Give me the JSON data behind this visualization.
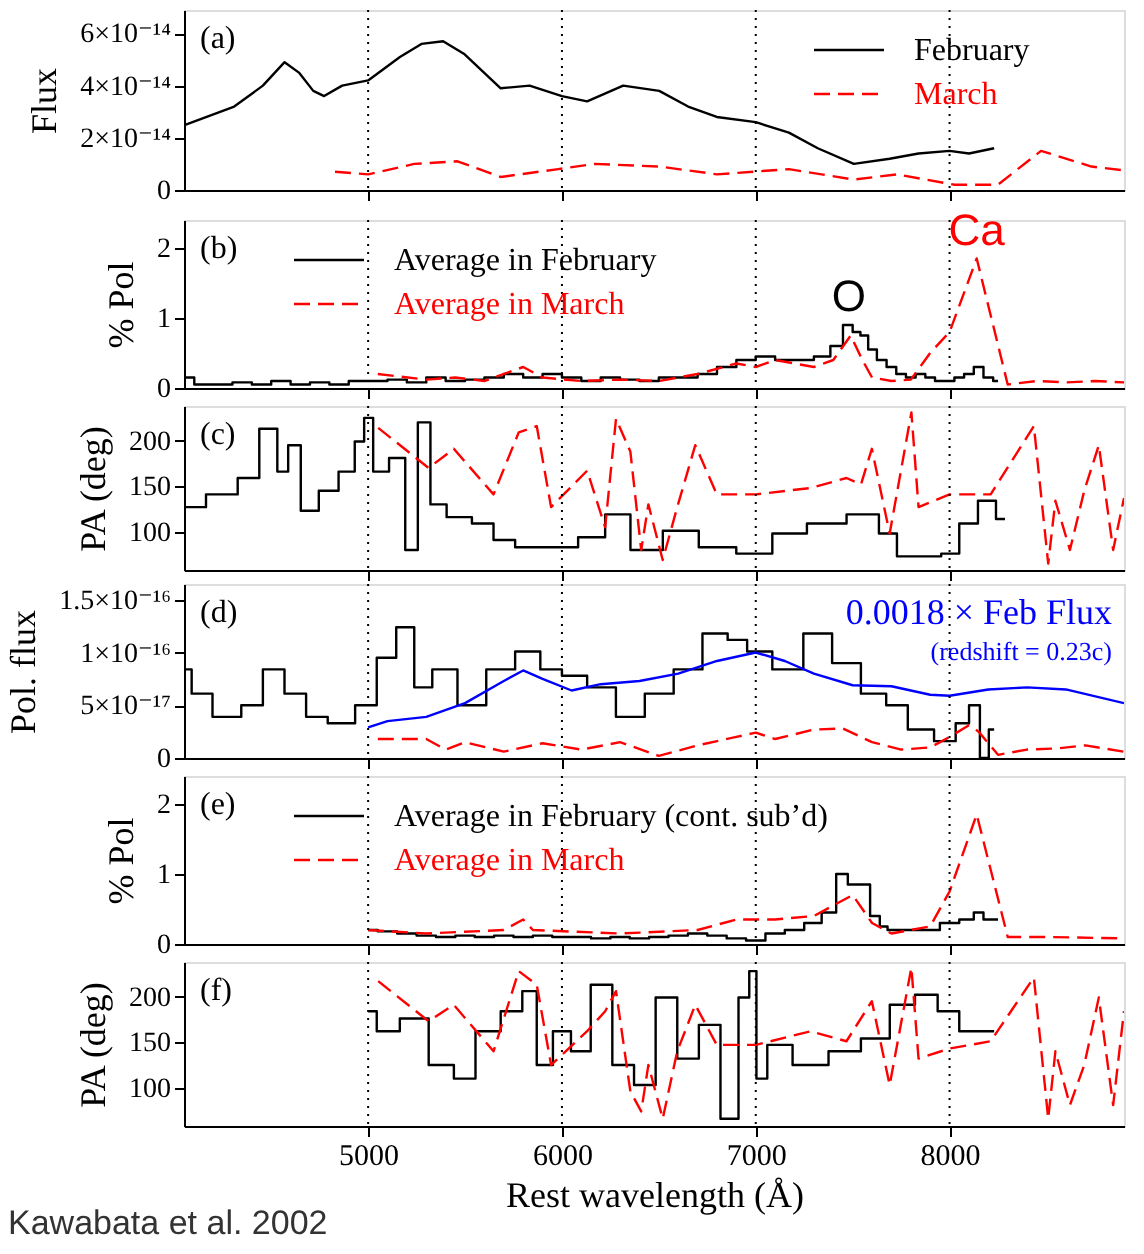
{
  "chart_data": [
    {
      "type": "line",
      "ylabel": "Flux",
      "xlim": [
        4050,
        8900
      ],
      "xticks": [
        5000,
        6000,
        7000,
        8000
      ],
      "ylim": [
        0,
        6.9e-14
      ],
      "yticks": [
        0,
        {
          "value": 2e-14,
          "label": "2×10⁻¹⁴"
        },
        {
          "value": 4e-14,
          "label": "4×10⁻¹⁴"
        },
        {
          "value": 6e-14,
          "label": "6×10⁻¹⁴"
        }
      ],
      "tick_labels": "y",
      "legend": "top right",
      "annotations": [
        "(a)"
      ],
      "ref_lines": [
        {
          "axis": "x",
          "value": 5000,
          "color": "#000000",
          "line_style": "dotted"
        },
        {
          "axis": "x",
          "value": 6000,
          "color": "#000000",
          "line_style": "dotted"
        },
        {
          "axis": "x",
          "value": 7000,
          "color": "#000000",
          "line_style": "dotted"
        },
        {
          "axis": "x",
          "value": 8000,
          "color": "#000000",
          "line_style": "dotted"
        }
      ],
      "series": [
        {
          "name": "February",
          "type": "line",
          "line_style": "solid",
          "color": "#000000",
          "x": [
            4056,
            4309,
            4457,
            4569,
            4643,
            4717,
            4773,
            4866,
            5000,
            5164,
            5275,
            5387,
            5498,
            5684,
            5833,
            6000,
            6130,
            6316,
            6502,
            6651,
            6799,
            7000,
            7171,
            7320,
            7506,
            7691,
            7840,
            8000,
            8100,
            8230
          ],
          "values": [
            2.5e-14,
            3.2e-14,
            4e-14,
            4.9e-14,
            4.5e-14,
            3.8e-14,
            3.6e-14,
            4e-14,
            4.2e-14,
            5.1e-14,
            5.6e-14,
            5.7e-14,
            5.2e-14,
            3.9e-14,
            4e-14,
            3.6e-14,
            3.4e-14,
            4e-14,
            3.8e-14,
            3.2e-14,
            2.8e-14,
            2.6e-14,
            2.2e-14,
            1.6e-14,
            1e-14,
            1.2e-14,
            1.4e-14,
            1.5e-14,
            1.4e-14,
            1.6e-14
          ]
        },
        {
          "name": "March",
          "type": "line",
          "line_style": "dashed",
          "color": "#ff0000",
          "x": [
            4829,
            5000,
            5238,
            5461,
            5684,
            5981,
            6167,
            6502,
            6799,
            7171,
            7506,
            7729,
            8026,
            8249,
            8472,
            8732,
            8900
          ],
          "values": [
            7e-15,
            6e-15,
            1e-14,
            1.1e-14,
            5e-15,
            8e-15,
            1e-14,
            9e-15,
            6e-15,
            8e-15,
            4e-15,
            6e-15,
            2e-15,
            2e-15,
            1.5e-14,
            9e-15,
            7.5e-15
          ]
        }
      ]
    },
    {
      "type": "line",
      "ylabel": "% Pol",
      "xlim": [
        4050,
        8900
      ],
      "xticks": [
        5000,
        6000,
        7000,
        8000
      ],
      "ylim": [
        0,
        2.4
      ],
      "yticks": [
        0,
        1,
        2
      ],
      "tick_labels": "y",
      "legend": "top left",
      "annotations": [
        "(b)",
        {
          "text": "O",
          "x": 7480,
          "y": 0.9
        },
        {
          "text": "Ca",
          "x": 8140,
          "y": 1.85
        }
      ],
      "ref_lines": [
        {
          "axis": "x",
          "value": 5000,
          "color": "#000000",
          "line_style": "dotted"
        },
        {
          "axis": "x",
          "value": 6000,
          "color": "#000000",
          "line_style": "dotted"
        },
        {
          "axis": "x",
          "value": 7000,
          "color": "#000000",
          "line_style": "dotted"
        },
        {
          "axis": "x",
          "value": 8000,
          "color": "#000000",
          "line_style": "dotted"
        }
      ],
      "series": [
        {
          "name": "Average in February",
          "type": "step",
          "line_style": "solid",
          "color": "#000000",
          "x": [
            4056,
            4150,
            4250,
            4350,
            4450,
            4550,
            4650,
            4750,
            4850,
            4950,
            5050,
            5150,
            5250,
            5350,
            5450,
            5550,
            5650,
            5750,
            5850,
            5950,
            6050,
            6150,
            6250,
            6350,
            6450,
            6550,
            6650,
            6750,
            6850,
            6950,
            7050,
            7150,
            7250,
            7350,
            7420,
            7480,
            7520,
            7560,
            7600,
            7650,
            7700,
            7750,
            7800,
            7850,
            7900,
            7950,
            8000,
            8050,
            8100,
            8150,
            8200,
            8250
          ],
          "values": [
            0.15,
            0.05,
            0.05,
            0.08,
            0.05,
            0.1,
            0.05,
            0.08,
            0.05,
            0.1,
            0.1,
            0.12,
            0.08,
            0.15,
            0.1,
            0.12,
            0.15,
            0.2,
            0.15,
            0.2,
            0.15,
            0.1,
            0.15,
            0.12,
            0.1,
            0.15,
            0.15,
            0.2,
            0.3,
            0.4,
            0.45,
            0.4,
            0.4,
            0.45,
            0.6,
            0.9,
            0.8,
            0.75,
            0.55,
            0.4,
            0.3,
            0.2,
            0.15,
            0.2,
            0.15,
            0.1,
            0.1,
            0.15,
            0.2,
            0.3,
            0.15,
            0.1
          ]
        },
        {
          "name": "Average in March",
          "type": "line",
          "line_style": "dashed",
          "color": "#ff0000",
          "x": [
            5050,
            5300,
            5450,
            5600,
            5800,
            5900,
            6100,
            6300,
            6500,
            6700,
            6900,
            7000,
            7100,
            7200,
            7300,
            7400,
            7490,
            7550,
            7600,
            7700,
            7800,
            7900,
            8000,
            8140,
            8300,
            8450,
            8600,
            8750,
            8900
          ],
          "values": [
            0.2,
            0.12,
            0.15,
            0.1,
            0.3,
            0.15,
            0.1,
            0.12,
            0.1,
            0.2,
            0.35,
            0.3,
            0.4,
            0.35,
            0.3,
            0.4,
            0.75,
            0.4,
            0.15,
            0.1,
            0.12,
            0.5,
            0.8,
            1.85,
            0.05,
            0.1,
            0.08,
            0.1,
            0.08
          ]
        }
      ]
    },
    {
      "type": "line",
      "ylabel": "PA (deg)",
      "xlim": [
        4050,
        8900
      ],
      "xticks": [
        5000,
        6000,
        7000,
        8000
      ],
      "ylim": [
        58,
        238
      ],
      "yticks": [
        100,
        150,
        200
      ],
      "tick_labels": "y",
      "annotations": [
        "(c)"
      ],
      "ref_lines": [
        {
          "axis": "x",
          "value": 5000,
          "color": "#000000",
          "line_style": "dotted"
        },
        {
          "axis": "x",
          "value": 6000,
          "color": "#000000",
          "line_style": "dotted"
        },
        {
          "axis": "x",
          "value": 7000,
          "color": "#000000",
          "line_style": "dotted"
        },
        {
          "axis": "x",
          "value": 8000,
          "color": "#000000",
          "line_style": "dotted"
        }
      ],
      "series": [
        {
          "type": "step",
          "line_style": "solid",
          "color": "#000000",
          "x": [
            4056,
            4271,
            4383,
            4494,
            4569,
            4606,
            4699,
            4792,
            4903,
            4959,
            5000,
            5052,
            5164,
            5219,
            5294,
            5349,
            5461,
            5610,
            5684,
            5833,
            6000,
            6167,
            6279,
            6428,
            6613,
            6799,
            7000,
            7171,
            7357,
            7580,
            7691,
            7766,
            7914,
            8000,
            8100,
            8193,
            8286
          ],
          "values": [
            127,
            141,
            159,
            213,
            166,
            195,
            123,
            145,
            166,
            199,
            225,
            166,
            181,
            80,
            220,
            130,
            116,
            109,
            91,
            83,
            83,
            94,
            119,
            80,
            101,
            83,
            76,
            98,
            109,
            119,
            98,
            73,
            73,
            76,
            109,
            134,
            114
          ]
        },
        {
          "type": "line",
          "line_style": "dashed",
          "color": "#ff0000",
          "x": [
            5052,
            5312,
            5442,
            5647,
            5777,
            5870,
            5944,
            6130,
            6223,
            6279,
            6353,
            6409,
            6446,
            6520,
            6595,
            6688,
            6799,
            7000,
            7283,
            7468,
            7543,
            7599,
            7691,
            7803,
            7840,
            8000,
            8212,
            8435,
            8509,
            8546,
            8621,
            8695,
            8770,
            8844,
            8900
          ],
          "values": [
            214,
            170,
            191,
            141,
            209,
            216,
            127,
            167,
            105,
            224,
            188,
            80,
            130,
            69,
            127,
            195,
            141,
            141,
            148,
            159,
            152,
            191,
            98,
            231,
            127,
            141,
            141,
            216,
            65,
            134,
            80,
            145,
            195,
            80,
            137
          ]
        }
      ]
    },
    {
      "type": "line",
      "ylabel": "Pol. flux",
      "xlim": [
        4050,
        8900
      ],
      "xticks": [
        5000,
        6000,
        7000,
        8000
      ],
      "ylim": [
        0,
        1.65e-16
      ],
      "yticks": [
        0,
        {
          "value": 5e-17,
          "label": "5×10⁻¹⁷"
        },
        {
          "value": 1e-16,
          "label": "1×10⁻¹⁶"
        },
        {
          "value": 1.5e-16,
          "label": "1.5×10⁻¹⁶"
        }
      ],
      "tick_labels": "y",
      "annotations": [
        "(d)",
        "(redshift = 0.23c)"
      ],
      "ref_lines": [
        {
          "axis": "x",
          "value": 5000,
          "color": "#000000",
          "line_style": "dotted"
        },
        {
          "axis": "x",
          "value": 6000,
          "color": "#000000",
          "line_style": "dotted"
        },
        {
          "axis": "x",
          "value": 7000,
          "color": "#000000",
          "line_style": "dotted"
        },
        {
          "axis": "x",
          "value": 8000,
          "color": "#000000",
          "line_style": "dotted"
        }
      ],
      "series": [
        {
          "type": "step",
          "line_style": "solid",
          "color": "#000000",
          "x": [
            4056,
            4123,
            4271,
            4420,
            4494,
            4643,
            4717,
            4866,
            5000,
            5089,
            5201,
            5275,
            5387,
            5535,
            5684,
            5833,
            5944,
            6056,
            6204,
            6353,
            6502,
            6651,
            6799,
            6911,
            7000,
            7171,
            7320,
            7468,
            7617,
            7729,
            7840,
            8000,
            8063,
            8138,
            8175,
            8230
          ],
          "values": [
            8.4e-17,
            6.1e-17,
            3.9e-17,
            5e-17,
            8.4e-17,
            6.1e-17,
            3.9e-17,
            3.3e-17,
            5e-17,
            9.5e-17,
            1.24e-16,
            6.7e-17,
            8.4e-17,
            5e-17,
            8.4e-17,
            1.01e-16,
            8.4e-17,
            7.8e-17,
            6.7e-17,
            3.9e-17,
            6.1e-17,
            8.4e-17,
            1.18e-16,
            1.12e-16,
            1.01e-16,
            8.4e-17,
            1.18e-16,
            9e-17,
            6.1e-17,
            5e-17,
            2.7e-17,
            1.6e-17,
            3.3e-17,
            5e-17,
            0,
            2.7e-17
          ]
        },
        {
          "type": "line",
          "line_style": "dashed",
          "color": "#ff0000",
          "x": [
            5050,
            5300,
            5400,
            5500,
            5700,
            5900,
            6100,
            6300,
            6500,
            6700,
            6900,
            7000,
            7100,
            7300,
            7450,
            7600,
            7750,
            7900,
            8000,
            8100,
            8150,
            8250,
            8400,
            8550,
            8700,
            8900
          ],
          "values": [
            1.8e-17,
            1.8e-17,
            8e-18,
            1.5e-17,
            6e-18,
            1.4e-17,
            8e-18,
            1.5e-17,
            2e-18,
            1.2e-17,
            2e-17,
            2.4e-17,
            1.8e-17,
            2.7e-17,
            2.8e-17,
            1.5e-17,
            8e-18,
            1e-17,
            2e-17,
            3.1e-17,
            2.5e-17,
            3e-18,
            8e-18,
            9e-18,
            1.2e-17,
            6e-18
          ]
        },
        {
          "name": "0.0018 × Feb Flux",
          "type": "line",
          "line_style": "solid",
          "color": "#0000ff",
          "x": [
            5000,
            5100,
            5300,
            5500,
            5700,
            5800,
            5900,
            6050,
            6200,
            6400,
            6600,
            6800,
            7000,
            7150,
            7300,
            7500,
            7700,
            7900,
            8000,
            8200,
            8400,
            8600,
            8900
          ],
          "values": [
            2.9e-17,
            3.5e-17,
            3.9e-17,
            5.2e-17,
            7.3e-17,
            8.3e-17,
            7.5e-17,
            6.4e-17,
            7e-17,
            7.3e-17,
            8e-17,
            9.2e-17,
            1e-16,
            9.2e-17,
            8e-17,
            6.9e-17,
            6.8e-17,
            6e-17,
            5.9e-17,
            6.5e-17,
            6.7e-17,
            6.5e-17,
            5.2e-17
          ]
        }
      ]
    },
    {
      "type": "line",
      "ylabel": "% Pol",
      "xlim": [
        4050,
        8900
      ],
      "xticks": [
        5000,
        6000,
        7000,
        8000
      ],
      "ylim": [
        0,
        2.4
      ],
      "yticks": [
        0,
        1,
        2
      ],
      "tick_labels": "y",
      "legend": "top left",
      "annotations": [
        "(e)"
      ],
      "ref_lines": [
        {
          "axis": "x",
          "value": 5000,
          "color": "#000000",
          "line_style": "dotted"
        },
        {
          "axis": "x",
          "value": 6000,
          "color": "#000000",
          "line_style": "dotted"
        },
        {
          "axis": "x",
          "value": 7000,
          "color": "#000000",
          "line_style": "dotted"
        },
        {
          "axis": "x",
          "value": 8000,
          "color": "#000000",
          "line_style": "dotted"
        }
      ],
      "series": [
        {
          "name": "Average in February (cont. sub’d)",
          "type": "step",
          "line_style": "solid",
          "color": "#000000",
          "x": [
            5000,
            5100,
            5200,
            5300,
            5400,
            5500,
            5600,
            5700,
            5800,
            5900,
            6000,
            6100,
            6200,
            6300,
            6400,
            6500,
            6600,
            6700,
            6800,
            6900,
            7000,
            7100,
            7200,
            7300,
            7380,
            7450,
            7500,
            7560,
            7620,
            7660,
            7700,
            7800,
            7900,
            8000,
            8100,
            8150,
            8200,
            8250
          ],
          "values": [
            0.2,
            0.18,
            0.15,
            0.12,
            0.1,
            0.12,
            0.1,
            0.12,
            0.1,
            0.12,
            0.1,
            0.1,
            0.08,
            0.1,
            0.08,
            0.1,
            0.12,
            0.15,
            0.12,
            0.08,
            0.05,
            0.15,
            0.2,
            0.3,
            0.45,
            1.0,
            0.85,
            0.85,
            0.4,
            0.25,
            0.2,
            0.2,
            0.2,
            0.3,
            0.35,
            0.45,
            0.35,
            0.35
          ]
        },
        {
          "name": "Average in March",
          "type": "line",
          "line_style": "dashed",
          "color": "#ff0000",
          "x": [
            5000,
            5300,
            5700,
            5800,
            5850,
            6300,
            6700,
            6900,
            7000,
            7100,
            7300,
            7500,
            7600,
            7700,
            7900,
            8000,
            8140,
            8300,
            8500,
            8900
          ],
          "values": [
            0.2,
            0.15,
            0.2,
            0.35,
            0.2,
            0.15,
            0.2,
            0.35,
            0.35,
            0.35,
            0.4,
            0.7,
            0.3,
            0.15,
            0.25,
            0.75,
            1.85,
            0.1,
            0.1,
            0.08
          ]
        }
      ]
    },
    {
      "type": "line",
      "ylabel": "PA (deg)",
      "xlabel": "Rest wavelength (Å)",
      "xlim": [
        4050,
        8900
      ],
      "xticks": [
        5000,
        6000,
        7000,
        8000
      ],
      "ylim": [
        58,
        238
      ],
      "yticks": [
        100,
        150,
        200
      ],
      "annotations": [
        "(f)",
        "Kawabata et al. 2002"
      ],
      "ref_lines": [
        {
          "axis": "x",
          "value": 5000,
          "color": "#000000",
          "line_style": "dotted"
        },
        {
          "axis": "x",
          "value": 6000,
          "color": "#000000",
          "line_style": "dotted"
        },
        {
          "axis": "x",
          "value": 7000,
          "color": "#000000",
          "line_style": "dotted"
        },
        {
          "axis": "x",
          "value": 8000,
          "color": "#000000",
          "line_style": "dotted"
        }
      ],
      "series": [
        {
          "type": "step",
          "line_style": "solid",
          "color": "#000000",
          "x": [
            5000,
            5089,
            5238,
            5387,
            5498,
            5610,
            5758,
            5833,
            5907,
            6000,
            6093,
            6204,
            6316,
            6428,
            6539,
            6651,
            6762,
            6874,
            6948,
            6985,
            7022,
            7097,
            7283,
            7468,
            7617,
            7766,
            7877,
            8000,
            8100,
            8230
          ],
          "values": [
            184,
            162,
            176,
            125,
            110,
            162,
            184,
            206,
            125,
            162,
            140,
            213,
            125,
            103,
            199,
            132,
            169,
            66,
            199,
            228,
            110,
            147,
            125,
            140,
            154,
            191,
            202,
            184,
            162,
            162
          ]
        },
        {
          "type": "line",
          "line_style": "dashed",
          "color": "#ff0000",
          "x": [
            5052,
            5312,
            5442,
            5647,
            5777,
            5870,
            5944,
            6130,
            6223,
            6279,
            6353,
            6409,
            6446,
            6520,
            6595,
            6688,
            6799,
            7000,
            7283,
            7468,
            7599,
            7691,
            7803,
            7840,
            8000,
            8212,
            8435,
            8509,
            8546,
            8621,
            8695,
            8770,
            8844,
            8900
          ],
          "values": [
            217,
            173,
            191,
            140,
            228,
            213,
            125,
            162,
            184,
            206,
            96,
            74,
            125,
            66,
            140,
            191,
            147,
            147,
            162,
            151,
            195,
            103,
            232,
            132,
            143,
            151,
            221,
            66,
            140,
            81,
            125,
            199,
            81,
            184
          ]
        }
      ]
    }
  ]
}
